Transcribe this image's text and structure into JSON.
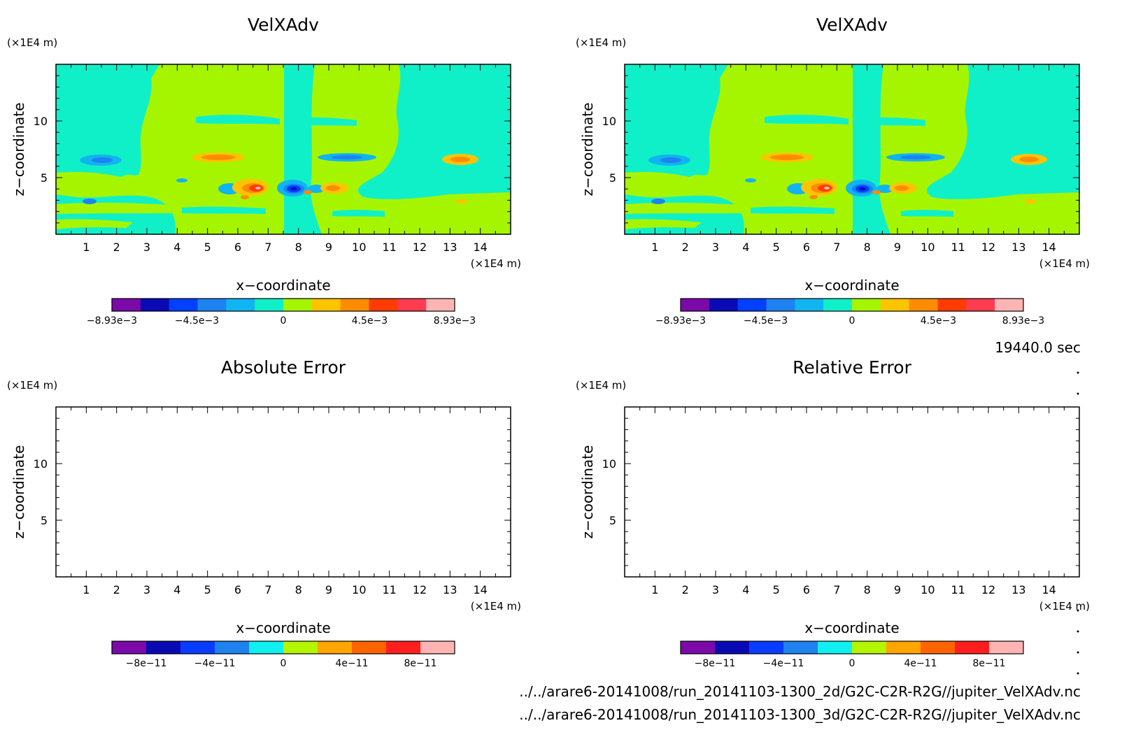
{
  "time_label": "19440.0 sec",
  "file_lines": [
    "../../arare6-20141008/run_20141103-1300_2d/G2C-C2R-R2G//jupiter_VelXAdv.nc",
    "../../arare6-20141008/run_20141103-1300_3d/G2C-C2R-R2G//jupiter_VelXAdv.nc"
  ],
  "colors": {
    "velocity_levels": [
      "#7b0aa8",
      "#0a0ab4",
      "#0040ff",
      "#1e82f0",
      "#10b4f0",
      "#10f0c8",
      "#a6f500",
      "#ffc400",
      "#ff8c00",
      "#ff3c00",
      "#ff3c50",
      "#ffb4b4"
    ],
    "error_levels": [
      "#7b0aa8",
      "#0a0ab4",
      "#0a3cff",
      "#1e82f0",
      "#10f0f0",
      "#b4f500",
      "#ffa500",
      "#ff6400",
      "#ff1e1e",
      "#ffb4b4"
    ]
  },
  "chart_data": [
    {
      "type": "heatmap",
      "title": "VelXAdv",
      "xlabel": "x−coordinate",
      "ylabel": "z−coordinate",
      "x_unit": "(×1E4 m)",
      "y_unit": "(×1E4 m)",
      "xlim": [
        0,
        15
      ],
      "ylim": [
        0,
        15
      ],
      "x_ticks": [
        "1",
        "2",
        "3",
        "4",
        "5",
        "6",
        "7",
        "8",
        "9",
        "10",
        "11",
        "12",
        "13",
        "14"
      ],
      "y_ticks": [
        "5",
        "10"
      ],
      "colorbar": {
        "min": -0.00893,
        "max": 0.00893,
        "labels": [
          "−8.93e−3",
          "−4.5e−3",
          "0",
          "4.5e−3",
          "8.93e−3"
        ]
      }
    },
    {
      "type": "heatmap",
      "title": "VelXAdv",
      "xlabel": "x−coordinate",
      "ylabel": "z−coordinate",
      "x_unit": "(×1E4 m)",
      "y_unit": "(×1E4 m)",
      "xlim": [
        0,
        15
      ],
      "ylim": [
        0,
        15
      ],
      "x_ticks": [
        "1",
        "2",
        "3",
        "4",
        "5",
        "6",
        "7",
        "8",
        "9",
        "10",
        "11",
        "12",
        "13",
        "14"
      ],
      "y_ticks": [
        "5",
        "10"
      ],
      "colorbar": {
        "min": -0.00893,
        "max": 0.00893,
        "labels": [
          "−8.93e−3",
          "−4.5e−3",
          "0",
          "4.5e−3",
          "8.93e−3"
        ]
      }
    },
    {
      "type": "heatmap",
      "title": "Absolute Error",
      "xlabel": "x−coordinate",
      "ylabel": "z−coordinate",
      "x_unit": "(×1E4 m)",
      "y_unit": "(×1E4 m)",
      "xlim": [
        0,
        15
      ],
      "ylim": [
        0,
        15
      ],
      "x_ticks": [
        "1",
        "2",
        "3",
        "4",
        "5",
        "6",
        "7",
        "8",
        "9",
        "10",
        "11",
        "12",
        "13",
        "14"
      ],
      "y_ticks": [
        "5",
        "10"
      ],
      "colorbar": {
        "min": -1e-10,
        "max": 1e-10,
        "labels": [
          "−8e−11",
          "−4e−11",
          "0",
          "4e−11",
          "8e−11"
        ]
      }
    },
    {
      "type": "heatmap",
      "title": "Relative Error",
      "xlabel": "x−coordinate",
      "ylabel": "z−coordinate",
      "x_unit": "(×1E4 m)",
      "y_unit": "(×1E4 m)",
      "xlim": [
        0,
        15
      ],
      "ylim": [
        0,
        15
      ],
      "x_ticks": [
        "1",
        "2",
        "3",
        "4",
        "5",
        "6",
        "7",
        "8",
        "9",
        "10",
        "11",
        "12",
        "13",
        "14"
      ],
      "y_ticks": [
        "5",
        "10"
      ],
      "colorbar": {
        "min": -1e-10,
        "max": 1e-10,
        "labels": [
          "−8e−11",
          "−4e−11",
          "0",
          "4e−11",
          "8e−11"
        ]
      }
    }
  ]
}
